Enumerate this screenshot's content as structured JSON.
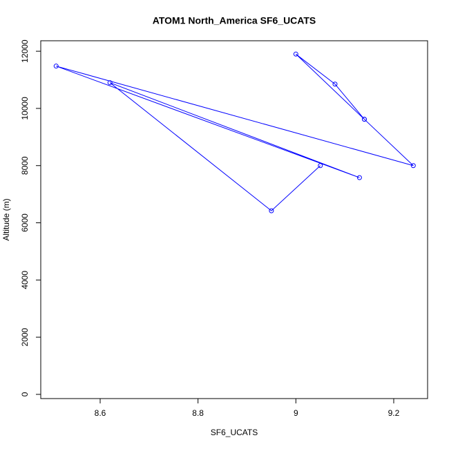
{
  "chart_data": {
    "type": "line",
    "title": "ATOM1 North_America SF6_UCATS",
    "x_label": "SF6_UCATS",
    "y_label": "Altitude (m)",
    "series": [
      {
        "color": "#0000ff",
        "x": [
          9.14,
          9.08,
          9.0,
          9.14,
          9.24,
          8.51,
          9.13,
          8.62,
          8.95,
          9.05
        ],
        "values": [
          9620,
          10850,
          11900,
          9620,
          8000,
          11480,
          7580,
          10900,
          6420,
          8000
        ]
      }
    ],
    "xlim": [
      8.4786,
      9.2692
    ],
    "xticks": [
      8.6,
      8.8,
      9.0,
      9.2
    ],
    "ylim": [
      -147,
      12366
    ],
    "yticks": [
      0,
      2000,
      4000,
      6000,
      8000,
      10000,
      12000
    ]
  }
}
